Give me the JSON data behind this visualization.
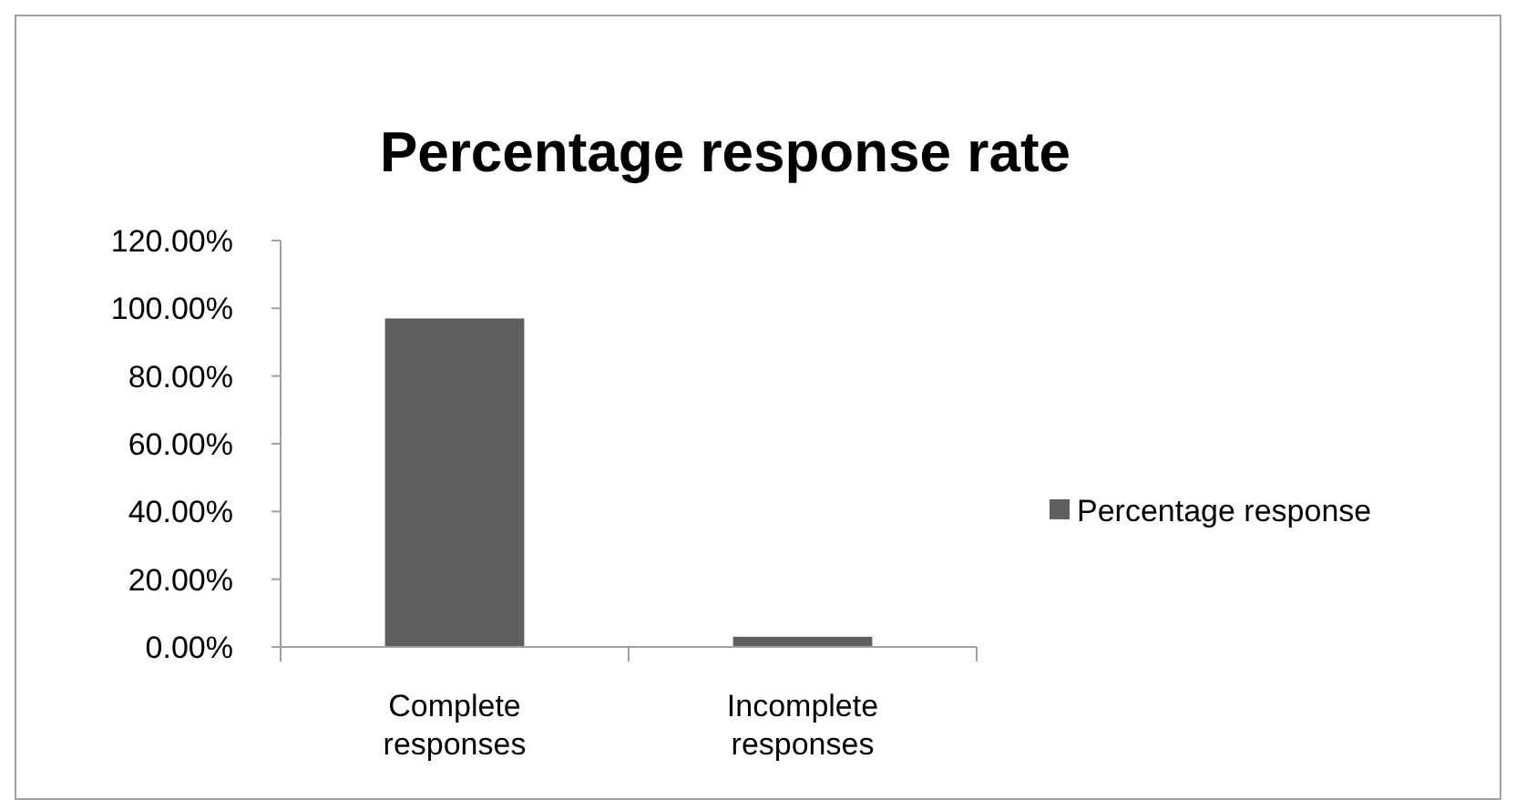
{
  "chart_data": {
    "type": "bar",
    "title": "Percentage response rate",
    "categories": [
      "Complete responses",
      "Incomplete responses"
    ],
    "series": [
      {
        "name": "Percentage response",
        "color": "#5f5f5f",
        "values": [
          97,
          3
        ]
      }
    ],
    "ylim": [
      0,
      120
    ],
    "yticks": [
      {
        "value": 0,
        "label": "0.00%"
      },
      {
        "value": 20,
        "label": "20.00%"
      },
      {
        "value": 40,
        "label": "40.00%"
      },
      {
        "value": 60,
        "label": "60.00%"
      },
      {
        "value": 80,
        "label": "80.00%"
      },
      {
        "value": 100,
        "label": "100.00%"
      },
      {
        "value": 120,
        "label": "120.00%"
      }
    ],
    "grid": false,
    "legend": "right"
  }
}
